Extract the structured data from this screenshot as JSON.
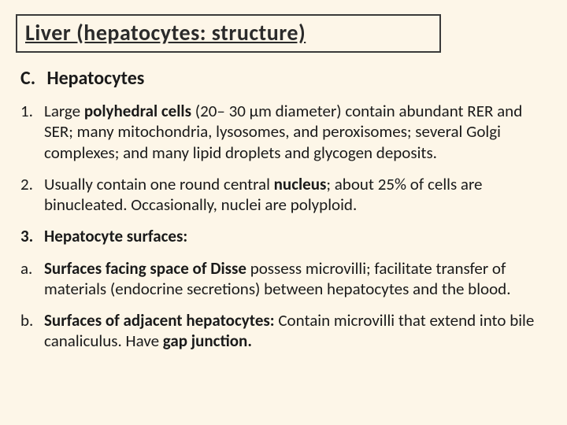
{
  "title": "Liver (hepatocytes: structure)",
  "section": {
    "letter": "C.",
    "heading": "Hepatocytes"
  },
  "items": [
    {
      "num": "1.",
      "parts": [
        {
          "t": "Large ",
          "b": false
        },
        {
          "t": "polyhedral cells ",
          "b": true
        },
        {
          "t": "(20– 30 µm diameter) contain abundant RER and SER; many mitochondria, lysosomes, and peroxisomes; several Golgi complexes; and many lipid droplets and glycogen deposits.",
          "b": false
        }
      ]
    },
    {
      "num": "2.",
      "parts": [
        {
          "t": "Usually contain one round central ",
          "b": false
        },
        {
          "t": "nucleus",
          "b": true
        },
        {
          "t": "; about 25% of cells are binucleated. Occasionally, nuclei are polyploid.",
          "b": false
        }
      ]
    },
    {
      "num": "3.",
      "parts": [
        {
          "t": "Hepatocyte surfaces:",
          "b": true
        }
      ]
    },
    {
      "num": "a.",
      "parts": [
        {
          "t": "Surfaces facing space of Disse ",
          "b": true
        },
        {
          "t": "possess microvilli; facilitate transfer of materials (endocrine secretions) between hepatocytes and the blood.",
          "b": false
        }
      ]
    },
    {
      "num": "b.",
      "parts": [
        {
          "t": "Surfaces of adjacent hepatocytes: ",
          "b": true
        },
        {
          "t": "Contain microvilli that extend into bile canaliculus. Have ",
          "b": false
        },
        {
          "t": "gap junction.",
          "b": true
        }
      ]
    }
  ],
  "colors": {
    "background": "#fdf6e8",
    "text": "#1a1a1a",
    "border": "#3a3a3a"
  },
  "typography": {
    "title_fontsize": 28,
    "heading_fontsize": 24,
    "body_fontsize": 21,
    "font_family": "Calibri"
  }
}
